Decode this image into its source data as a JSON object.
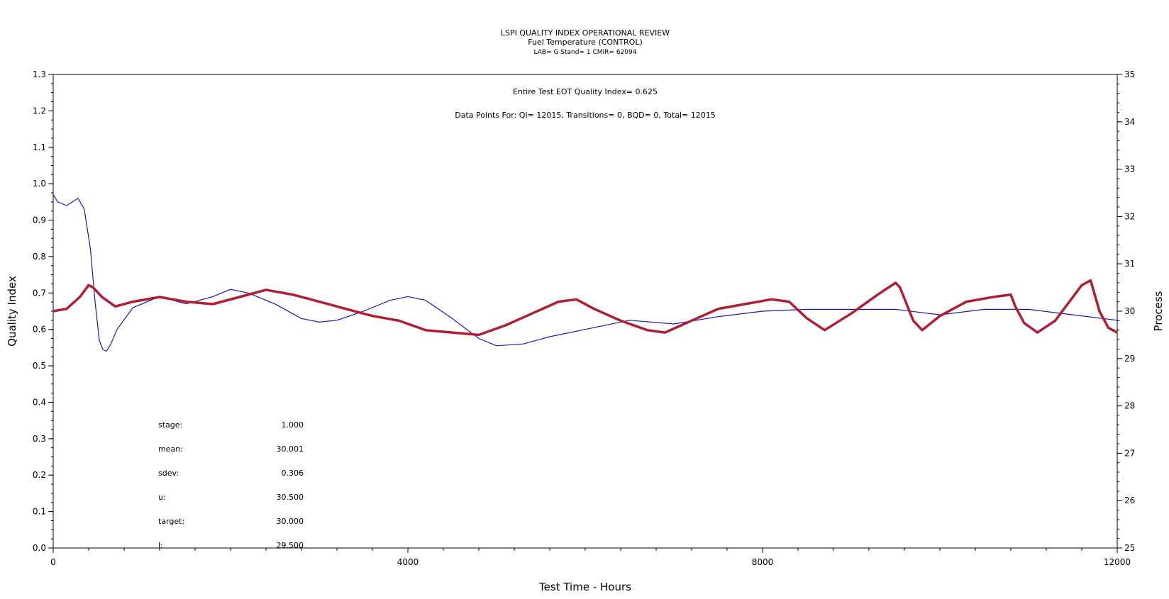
{
  "chart_data": {
    "type": "line",
    "title": "LSPI QUALITY INDEX OPERATIONAL REVIEW",
    "subtitle": "Fuel Temperature (CONTROL)",
    "subtitle2": "LAB= G Stand= 1 CMIR= 62094",
    "xlabel": "Test Time - Hours",
    "ylabel_left": "Quality Index",
    "ylabel_right": "Process",
    "xlim": [
      0,
      12000
    ],
    "ylim_left": [
      0.0,
      1.3
    ],
    "ylim_right": [
      25,
      35
    ],
    "x_ticks": [
      "0",
      "4000",
      "8000",
      "12000"
    ],
    "y_left_ticks": [
      "0.0",
      "0.1",
      "0.2",
      "0.3",
      "0.4",
      "0.5",
      "0.6",
      "0.7",
      "0.8",
      "0.9",
      "1.0",
      "1.1",
      "1.2",
      "1.3"
    ],
    "y_right_ticks": [
      "25",
      "26",
      "27",
      "28",
      "29",
      "30",
      "31",
      "32",
      "33",
      "34",
      "35"
    ],
    "annotations": {
      "eot": "Entire Test EOT Quality Index=   0.625",
      "points": "Data Points For: QI= 12015, Transitions=      0, BQD=      0, Total= 12015"
    },
    "stats": [
      {
        "label": "stage:",
        "value": "1.000"
      },
      {
        "label": "mean:",
        "value": "30.001"
      },
      {
        "label": "sdev:",
        "value": "0.306"
      },
      {
        "label": "u:",
        "value": "30.500"
      },
      {
        "label": "target:",
        "value": "30.000"
      },
      {
        "label": "l:",
        "value": "29.500"
      }
    ],
    "series": [
      {
        "axis": "left",
        "color": "#1a1aa6",
        "x": [
          0,
          50,
          150,
          280,
          350,
          420,
          470,
          520,
          560,
          600,
          650,
          720,
          900,
          1200,
          1500,
          1800,
          2000,
          2200,
          2500,
          2800,
          3000,
          3200,
          3500,
          3800,
          4000,
          4200,
          4500,
          4800,
          5000,
          5300,
          5600,
          6000,
          6500,
          7000,
          7500,
          8000,
          8500,
          9000,
          9500,
          10000,
          10500,
          11000,
          11500,
          12000
        ],
        "y": [
          0.97,
          0.95,
          0.94,
          0.96,
          0.93,
          0.82,
          0.68,
          0.57,
          0.545,
          0.54,
          0.56,
          0.6,
          0.66,
          0.69,
          0.67,
          0.69,
          0.71,
          0.7,
          0.67,
          0.63,
          0.62,
          0.625,
          0.65,
          0.68,
          0.69,
          0.68,
          0.63,
          0.575,
          0.555,
          0.56,
          0.58,
          0.6,
          0.625,
          0.615,
          0.635,
          0.65,
          0.655,
          0.655,
          0.655,
          0.64,
          0.655,
          0.655,
          0.64,
          0.625
        ]
      },
      {
        "axis": "right",
        "color": "#b01e32",
        "x": [
          0,
          150,
          300,
          400,
          450,
          550,
          700,
          900,
          1200,
          1500,
          1800,
          2100,
          2400,
          2700,
          3000,
          3300,
          3600,
          3900,
          4200,
          4500,
          4800,
          5100,
          5400,
          5700,
          5900,
          6100,
          6400,
          6700,
          6900,
          7200,
          7500,
          7800,
          8100,
          8300,
          8500,
          8700,
          9000,
          9300,
          9500,
          9550,
          9700,
          9800,
          10000,
          10300,
          10600,
          10800,
          10850,
          10950,
          11100,
          11300,
          11500,
          11600,
          11700,
          11800,
          11900,
          12000
        ],
        "y": [
          30.0,
          30.05,
          30.3,
          30.55,
          30.5,
          30.3,
          30.1,
          30.2,
          30.3,
          30.2,
          30.15,
          30.3,
          30.45,
          30.35,
          30.2,
          30.05,
          29.9,
          29.8,
          29.6,
          29.55,
          29.5,
          29.7,
          29.95,
          30.2,
          30.25,
          30.05,
          29.8,
          29.6,
          29.55,
          29.8,
          30.05,
          30.15,
          30.25,
          30.2,
          29.85,
          29.6,
          29.95,
          30.35,
          30.6,
          30.5,
          29.8,
          29.6,
          29.9,
          30.2,
          30.3,
          30.35,
          30.1,
          29.75,
          29.55,
          29.8,
          30.3,
          30.55,
          30.65,
          30.0,
          29.65,
          29.55
        ]
      }
    ]
  }
}
